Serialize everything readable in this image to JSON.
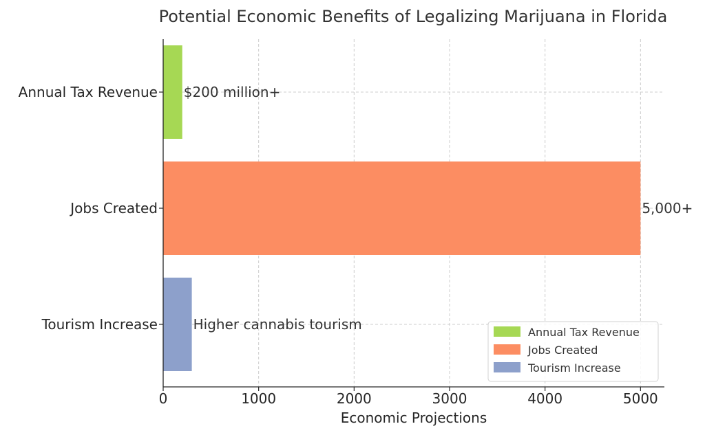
{
  "chart_data": {
    "type": "bar",
    "orientation": "horizontal",
    "title": "Potential Economic Benefits of Legalizing Marijuana in Florida",
    "xlabel": "Economic Projections",
    "ylabel": "",
    "xlim": [
      0,
      5250
    ],
    "xticks": [
      0,
      1000,
      2000,
      3000,
      4000,
      5000
    ],
    "grid": true,
    "legend_position": "bottom-right",
    "categories": [
      "Annual Tax Revenue",
      "Jobs Created",
      "Tourism Increase"
    ],
    "values": [
      200,
      5000,
      300
    ],
    "data_labels": [
      "$200 million+",
      "5,000+",
      "Higher cannabis tourism"
    ],
    "colors": [
      "#a6d854",
      "#fc8d62",
      "#8da0cb"
    ],
    "legend": [
      "Annual Tax Revenue",
      "Jobs Created",
      "Tourism Increase"
    ]
  }
}
